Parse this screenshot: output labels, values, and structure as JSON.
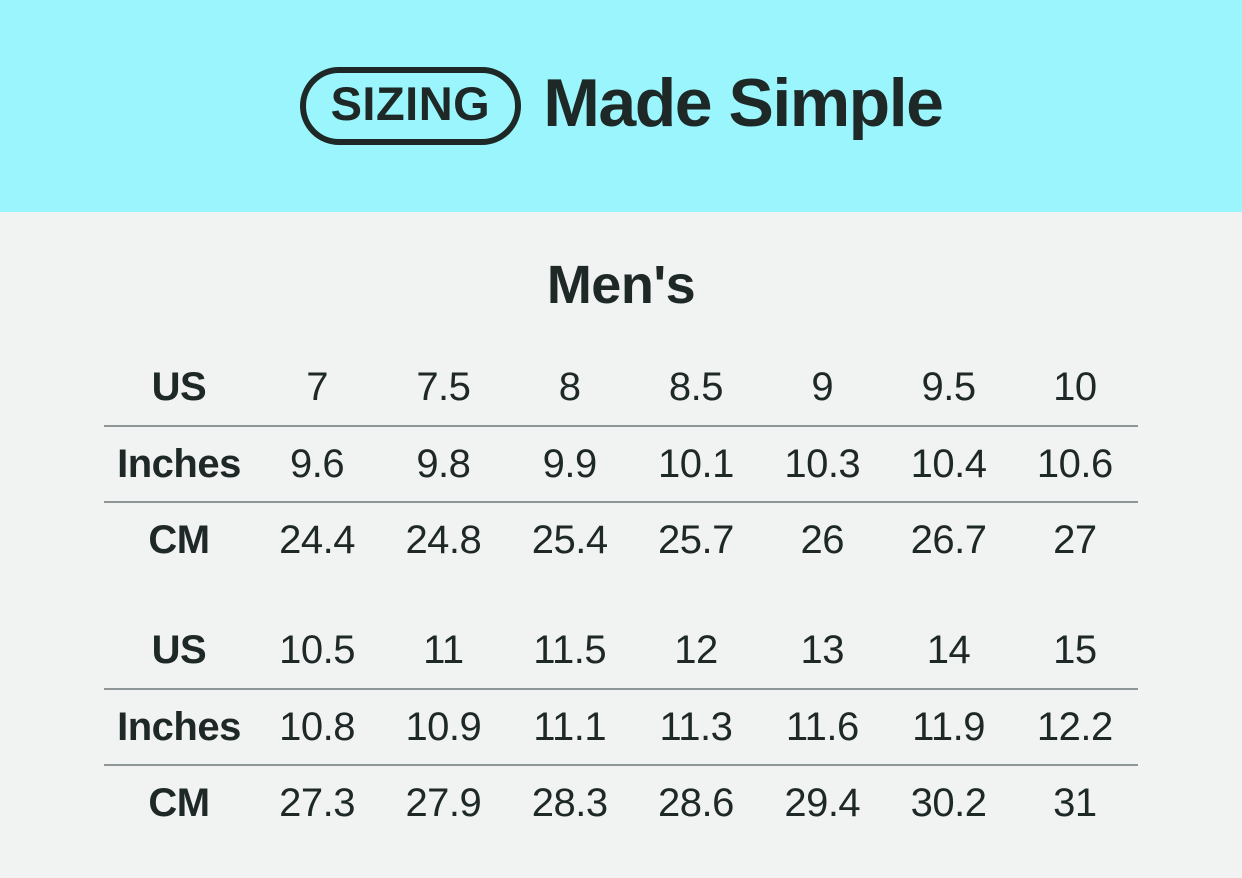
{
  "banner": {
    "badge_label": "SIZING",
    "title": "Made Simple",
    "bg_color": "#9af6fc",
    "text_color": "#1e2927"
  },
  "section": {
    "title": "Men's",
    "bg_color": "#f1f2f2",
    "divider_color": "#8e9697"
  },
  "chart_data": {
    "type": "table",
    "title": "Men's",
    "row_headers": [
      "US",
      "Inches",
      "CM"
    ],
    "tables": [
      {
        "rows": [
          {
            "label": "US",
            "values": [
              "7",
              "7.5",
              "8",
              "8.5",
              "9",
              "9.5",
              "10"
            ]
          },
          {
            "label": "Inches",
            "values": [
              "9.6",
              "9.8",
              "9.9",
              "10.1",
              "10.3",
              "10.4",
              "10.6"
            ]
          },
          {
            "label": "CM",
            "values": [
              "24.4",
              "24.8",
              "25.4",
              "25.7",
              "26",
              "26.7",
              "27"
            ]
          }
        ]
      },
      {
        "rows": [
          {
            "label": "US",
            "values": [
              "10.5",
              "11",
              "11.5",
              "12",
              "13",
              "14",
              "15"
            ]
          },
          {
            "label": "Inches",
            "values": [
              "10.8",
              "10.9",
              "11.1",
              "11.3",
              "11.6",
              "11.9",
              "12.2"
            ]
          },
          {
            "label": "CM",
            "values": [
              "27.3",
              "27.9",
              "28.3",
              "28.6",
              "29.4",
              "30.2",
              "31"
            ]
          }
        ]
      }
    ]
  }
}
